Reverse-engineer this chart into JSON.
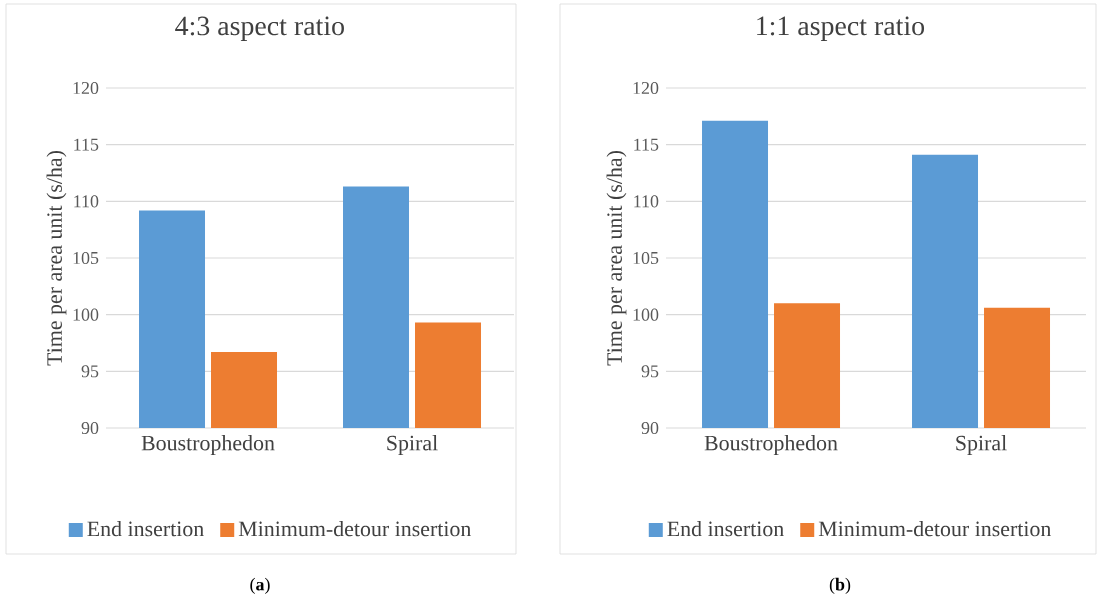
{
  "chart_data": [
    {
      "type": "bar",
      "title": "4:3 aspect ratio",
      "ylabel": "Time per area unit (s/ha)",
      "categories": [
        "Boustrophedon",
        "Spiral"
      ],
      "series": [
        {
          "name": "End insertion",
          "color": "#5b9bd5",
          "values": [
            109.2,
            111.3
          ]
        },
        {
          "name": "Minimum-detour insertion",
          "color": "#ed7d31",
          "values": [
            96.7,
            99.3
          ]
        }
      ],
      "ylim": [
        90,
        120
      ],
      "yticks": [
        90,
        95,
        100,
        105,
        110,
        115,
        120
      ],
      "grid": "y",
      "legend": "bottom",
      "annotations": [
        "(**a**)"
      ]
    },
    {
      "type": "bar",
      "title": "1:1 aspect ratio",
      "ylabel": "Time per area unit (s/ha)",
      "categories": [
        "Boustrophedon",
        "Spiral"
      ],
      "series": [
        {
          "name": "End insertion",
          "color": "#5b9bd5",
          "values": [
            117.1,
            114.1
          ]
        },
        {
          "name": "Minimum-detour insertion",
          "color": "#ed7d31",
          "values": [
            101.0,
            100.6
          ]
        }
      ],
      "ylim": [
        90,
        120
      ],
      "yticks": [
        90,
        95,
        100,
        105,
        110,
        115,
        120
      ],
      "grid": "y",
      "legend": "bottom",
      "annotations": [
        "(**b**)"
      ]
    }
  ]
}
